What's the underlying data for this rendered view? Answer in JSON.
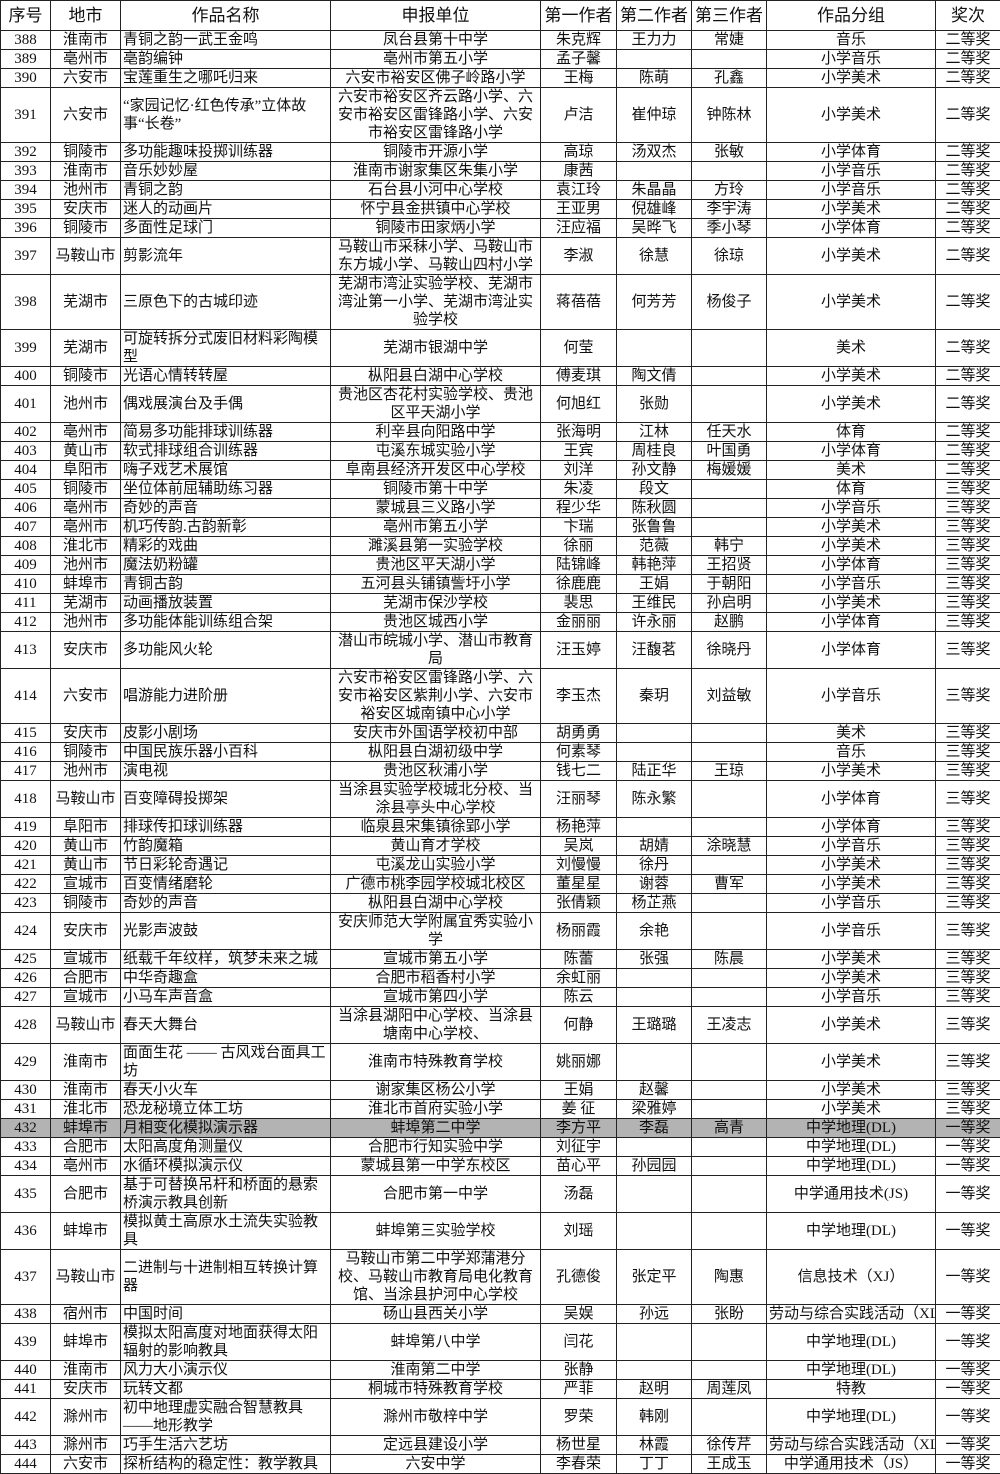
{
  "table": {
    "headers": [
      "序号",
      "地市",
      "作品名称",
      "申报单位",
      "第一作者",
      "第二作者",
      "第三作者",
      "作品分组",
      "奖次"
    ],
    "highlight_color": "#b3b3b3",
    "highlighted_row": "432",
    "rows": [
      [
        "388",
        "淮南市",
        "青铜之韵一武王金鸣",
        "凤台县第十中学",
        "朱克辉",
        "王力力",
        "常婕",
        "音乐",
        "二等奖"
      ],
      [
        "389",
        "亳州市",
        "亳韵编钟",
        "亳州市第五小学",
        "孟子馨",
        "",
        "",
        "小学音乐",
        "二等奖"
      ],
      [
        "390",
        "六安市",
        "宝莲重生之哪吒归来",
        "六安市裕安区佛子岭路小学",
        "王梅",
        "陈萌",
        "孔鑫",
        "小学美术",
        "二等奖"
      ],
      [
        "391",
        "六安市",
        "“家园记忆·红色传承”立体故事“长卷”",
        "六安市裕安区齐云路小学、六安市裕安区雷锋路小学、六安市裕安区雷锋路小学",
        "卢洁",
        "崔仲琼",
        "钟陈林",
        "小学美术",
        "二等奖"
      ],
      [
        "392",
        "铜陵市",
        "多功能趣味投掷训练器",
        "铜陵市开源小学",
        "高琼",
        "汤双杰",
        "张敏",
        "小学体育",
        "二等奖"
      ],
      [
        "393",
        "淮南市",
        "音乐妙妙屋",
        "淮南市谢家集区朱集小学",
        "康茜",
        "",
        "",
        "小学音乐",
        "二等奖"
      ],
      [
        "394",
        "池州市",
        "青铜之韵",
        "石台县小河中心学校",
        "袁江玲",
        "朱晶晶",
        "方玲",
        "小学音乐",
        "二等奖"
      ],
      [
        "395",
        "安庆市",
        "迷人的动画片",
        "怀宁县金拱镇中心学校",
        "王亚男",
        "倪雄峰",
        "李宇涛",
        "小学美术",
        "二等奖"
      ],
      [
        "396",
        "铜陵市",
        "多面性足球门",
        "铜陵市田家炳小学",
        "汪应福",
        "吴晔飞",
        "季小琴",
        "小学体育",
        "二等奖"
      ],
      [
        "397",
        "马鞍山市",
        "剪影流年",
        "马鞍山市采秣小学、马鞍山市东方城小学、马鞍山四村小学",
        "李淑",
        "徐慧",
        "徐琼",
        "小学美术",
        "二等奖"
      ],
      [
        "398",
        "芜湖市",
        "三原色下的古城印迹",
        "芜湖市湾沚实验学校、芜湖市湾沚第一小学、芜湖市湾沚实验学校",
        "蒋蓓蓓",
        "何芳芳",
        "杨俊子",
        "小学美术",
        "二等奖"
      ],
      [
        "399",
        "芜湖市",
        "可旋转拆分式废旧材料彩陶模型",
        "芜湖市银湖中学",
        "何莹",
        "",
        "",
        "美术",
        "二等奖"
      ],
      [
        "400",
        "铜陵市",
        "光语心情转转屋",
        "枞阳县白湖中心学校",
        "傅麦琪",
        "陶文倩",
        "",
        "小学美术",
        "二等奖"
      ],
      [
        "401",
        "池州市",
        "偶戏展演台及手偶",
        "贵池区杏花村实验学校、贵池区平天湖小学",
        "何旭红",
        "张勋",
        "",
        "小学美术",
        "二等奖"
      ],
      [
        "402",
        "亳州市",
        "简易多功能排球训练器",
        "利辛县向阳路中学",
        "张海明",
        "江林",
        "任天水",
        "体育",
        "二等奖"
      ],
      [
        "403",
        "黄山市",
        "软式排球组合训练器",
        "屯溪东城实验小学",
        "王宾",
        "周桂良",
        "叶国勇",
        "小学体育",
        "二等奖"
      ],
      [
        "404",
        "阜阳市",
        "嗨子戏艺术展馆",
        "阜南县经济开发区中心学校",
        "刘洋",
        "孙文静",
        "梅媛媛",
        "美术",
        "二等奖"
      ],
      [
        "405",
        "铜陵市",
        "坐位体前屈辅助练习器",
        "铜陵市第十中学",
        "朱凌",
        "段文",
        "",
        "体育",
        "三等奖"
      ],
      [
        "406",
        "亳州市",
        "奇妙的声音",
        "蒙城县三义路小学",
        "程少华",
        "陈秋圆",
        "",
        "小学音乐",
        "三等奖"
      ],
      [
        "407",
        "亳州市",
        "机巧传韵.古韵新彰",
        "亳州市第五小学",
        "卞瑞",
        "张鲁鲁",
        "",
        "小学美术",
        "三等奖"
      ],
      [
        "408",
        "淮北市",
        "精彩的戏曲",
        "濉溪县第一实验学校",
        "徐丽",
        "范薇",
        "韩宁",
        "小学美术",
        "三等奖"
      ],
      [
        "409",
        "池州市",
        "魔法奶粉罐",
        "贵池区平天湖小学",
        "陆锦峰",
        "韩艳萍",
        "王招贤",
        "小学体育",
        "三等奖"
      ],
      [
        "410",
        "蚌埠市",
        "青铜古韵",
        "五河县头铺镇訾圩小学",
        "徐鹿鹿",
        "王娟",
        "于朝阳",
        "小学音乐",
        "三等奖"
      ],
      [
        "411",
        "芜湖市",
        "动画播放装置",
        "芜湖市保沙学校",
        "裴思",
        "王维民",
        "孙启明",
        "小学美术",
        "三等奖"
      ],
      [
        "412",
        "池州市",
        "多功能体能训练组合架",
        "贵池区城西小学",
        "金丽丽",
        "许永丽",
        "赵鹏",
        "小学体育",
        "三等奖"
      ],
      [
        "413",
        "安庆市",
        "多功能风火轮",
        "潜山市皖城小学、潜山市教育局",
        "汪玉婷",
        "汪馥茗",
        "徐晓丹",
        "小学体育",
        "三等奖"
      ],
      [
        "414",
        "六安市",
        "唱游能力进阶册",
        "六安市裕安区雷锋路小学、六安市裕安区紫荆小学、六安市裕安区城南镇中心小学",
        "李玉杰",
        "秦玥",
        "刘益敏",
        "小学音乐",
        "三等奖"
      ],
      [
        "415",
        "安庆市",
        "皮影小剧场",
        "安庆市外国语学校初中部",
        "胡勇勇",
        "",
        "",
        "美术",
        "三等奖"
      ],
      [
        "416",
        "铜陵市",
        "中国民族乐器小百科",
        "枞阳县白湖初级中学",
        "何素琴",
        "",
        "",
        "音乐",
        "三等奖"
      ],
      [
        "417",
        "池州市",
        "演电视",
        "贵池区秋浦小学",
        "钱七二",
        "陆正华",
        "王琼",
        "小学美术",
        "三等奖"
      ],
      [
        "418",
        "马鞍山市",
        "百变障碍投掷架",
        "当涂县实验学校城北分校、当涂县亭头中心学校",
        "汪丽琴",
        "陈永繁",
        "",
        "小学体育",
        "三等奖"
      ],
      [
        "419",
        "阜阳市",
        "排球传扣球训练器",
        "临泉县宋集镇徐郢小学",
        "杨艳萍",
        "",
        "",
        "小学体育",
        "三等奖"
      ],
      [
        "420",
        "黄山市",
        "竹韵魔箱",
        "黄山育才学校",
        "吴岚",
        "胡婧",
        "涂晓慧",
        "小学音乐",
        "三等奖"
      ],
      [
        "421",
        "黄山市",
        "节日彩轮奇遇记",
        "屯溪龙山实验小学",
        "刘慢慢",
        "徐丹",
        "",
        "小学美术",
        "三等奖"
      ],
      [
        "422",
        "宣城市",
        "百变情绪磨轮",
        "广德市桃李园学校城北校区",
        "董星星",
        "谢蓉",
        "曹军",
        "小学美术",
        "三等奖"
      ],
      [
        "423",
        "铜陵市",
        "奇妙的声音",
        "枞阳县白湖中心学校",
        "张倩颖",
        "杨芷燕",
        "",
        "小学音乐",
        "三等奖"
      ],
      [
        "424",
        "安庆市",
        "光影声波鼓",
        "安庆师范大学附属宜秀实验小学",
        "杨丽霞",
        "余艳",
        "",
        "小学音乐",
        "三等奖"
      ],
      [
        "425",
        "宣城市",
        "纸载千年纹样，筑梦未来之城",
        "宣城市第五小学",
        "陈蕾",
        "张强",
        "陈晨",
        "小学美术",
        "三等奖"
      ],
      [
        "426",
        "合肥市",
        "中华奇趣盒",
        "合肥市稻香村小学",
        "余虹丽",
        "",
        "",
        "小学美术",
        "三等奖"
      ],
      [
        "427",
        "宣城市",
        "小马车声音盒",
        "宣城市第四小学",
        "陈云",
        "",
        "",
        "小学音乐",
        "三等奖"
      ],
      [
        "428",
        "马鞍山市",
        "春天大舞台",
        "当涂县湖阳中心学校、当涂县塘南中心学校、",
        "何静",
        "王璐璐",
        "王凌志",
        "小学美术",
        "三等奖"
      ],
      [
        "429",
        "淮南市",
        "面面生花 —— 古风戏台面具工坊",
        "淮南市特殊教育学校",
        "姚丽娜",
        "",
        "",
        "小学美术",
        "三等奖"
      ],
      [
        "430",
        "淮南市",
        "春天小火车",
        "谢家集区杨公小学",
        "王娟",
        "赵馨",
        "",
        "小学美术",
        "三等奖"
      ],
      [
        "431",
        "淮北市",
        "恐龙秘境立体工坊",
        "淮北市首府实验小学",
        "姜 征",
        "梁雅婷",
        "",
        "小学美术",
        "三等奖"
      ],
      [
        "432",
        "蚌埠市",
        "月相变化模拟演示器",
        "蚌埠第二中学",
        "李方平",
        "李磊",
        "高青",
        "中学地理(DL)",
        "一等奖"
      ],
      [
        "433",
        "合肥市",
        "太阳高度角测量仪",
        "合肥市行知实验中学",
        "刘征宇",
        "",
        "",
        "中学地理(DL)",
        "一等奖"
      ],
      [
        "434",
        "亳州市",
        "水循环模拟演示仪",
        "蒙城县第一中学东校区",
        "苗心平",
        "孙园园",
        "",
        "中学地理(DL)",
        "一等奖"
      ],
      [
        "435",
        "合肥市",
        "基于可替换吊杆和桥面的悬索桥演示教具创新",
        "合肥市第一中学",
        "汤磊",
        "",
        "",
        "中学通用技术(JS)",
        "一等奖"
      ],
      [
        "436",
        "蚌埠市",
        "模拟黄土高原水土流失实验教具",
        "蚌埠第三实验学校",
        "刘瑶",
        "",
        "",
        "中学地理(DL)",
        "一等奖"
      ],
      [
        "437",
        "马鞍山市",
        "二进制与十进制相互转换计算器",
        "马鞍山市第二中学郑蒲港分校、马鞍山市教育局电化教育馆、当涂县护河中心学校",
        "孔德俊",
        "张定平",
        "陶惠",
        "信息技术（XJ）",
        "一等奖"
      ],
      [
        "438",
        "宿州市",
        "中国时间",
        "砀山县西关小学",
        "吴娱",
        "孙远",
        "张盼",
        "劳动与综合实践活动（XL",
        "一等奖"
      ],
      [
        "439",
        "蚌埠市",
        "模拟太阳高度对地面获得太阳辐射的影响教具",
        "蚌埠第八中学",
        "闫花",
        "",
        "",
        "中学地理(DL)",
        "一等奖"
      ],
      [
        "440",
        "淮南市",
        "风力大小演示仪",
        "淮南第二中学",
        "张静",
        "",
        "",
        "中学地理(DL)",
        "一等奖"
      ],
      [
        "441",
        "安庆市",
        "玩转文都",
        "桐城市特殊教育学校",
        "严菲",
        "赵明",
        "周莲凤",
        "特教",
        "一等奖"
      ],
      [
        "442",
        "滁州市",
        "初中地理虚实融合智慧教具——地形教学",
        "滁州市敬梓中学",
        "罗荣",
        "韩刚",
        "",
        "中学地理(DL)",
        "一等奖"
      ],
      [
        "443",
        "滁州市",
        "巧手生活六艺坊",
        "定远县建设小学",
        "杨世星",
        "林霞",
        "徐传芹",
        "劳动与综合实践活动（XL",
        "一等奖"
      ],
      [
        "444",
        "六安市",
        "探析结构的稳定性：教学教具",
        "六安中学",
        "李春荣",
        "丁丁",
        "王成玉",
        "中学通用技术（JS）",
        "一等奖"
      ]
    ]
  }
}
